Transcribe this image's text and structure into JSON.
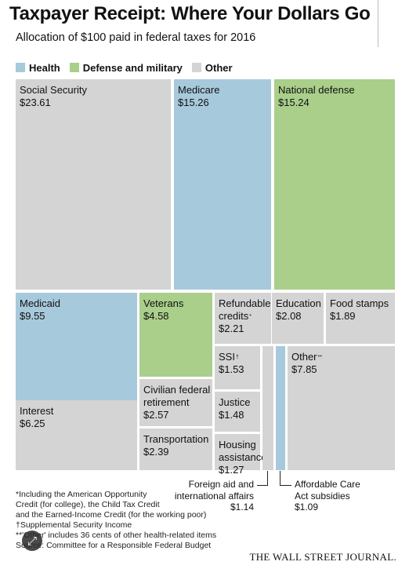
{
  "title": "Taxpayer Receipt: Where Your Dollars Go",
  "subtitle": "Allocation of $100 paid in federal taxes for 2016",
  "colors": {
    "health": "#a7c9dc",
    "defense": "#a9cf8a",
    "other": "#d4d4d4"
  },
  "legend": [
    {
      "label": "Health",
      "color": "#a7c9dc"
    },
    {
      "label": "Defense and military",
      "color": "#a9cf8a"
    },
    {
      "label": "Other",
      "color": "#d4d4d4"
    }
  ],
  "chart_data": {
    "type": "treemap",
    "title": "Taxpayer Receipt: Where Your Dollars Go",
    "subtitle": "Allocation of $100 paid in federal taxes for 2016",
    "unit": "$",
    "items": [
      {
        "key": "social_security",
        "name": "Social Security",
        "value": 23.61,
        "value_label": "$23.61",
        "group": "Other"
      },
      {
        "key": "medicare",
        "name": "Medicare",
        "value": 15.26,
        "value_label": "$15.26",
        "group": "Health"
      },
      {
        "key": "national_defense",
        "name": "National defense",
        "value": 15.24,
        "value_label": "$15.24",
        "group": "Defense and military"
      },
      {
        "key": "medicaid",
        "name": "Medicaid",
        "value": 9.55,
        "value_label": "$9.55",
        "group": "Health"
      },
      {
        "key": "interest",
        "name": "Interest",
        "value": 6.25,
        "value_label": "$6.25",
        "group": "Other"
      },
      {
        "key": "veterans",
        "name": "Veterans",
        "value": 4.58,
        "value_label": "$4.58",
        "group": "Defense and military"
      },
      {
        "key": "civilian_retirement",
        "name": "Civilian federal retirement",
        "value": 2.57,
        "value_label": "$2.57",
        "group": "Other"
      },
      {
        "key": "transportation",
        "name": "Transportation",
        "value": 2.39,
        "value_label": "$2.39",
        "group": "Other"
      },
      {
        "key": "refundable_credits",
        "name": "Refundable credits",
        "marker": "*",
        "value": 2.21,
        "value_label": "$2.21",
        "group": "Other"
      },
      {
        "key": "ssi",
        "name": "SSI",
        "marker": "†",
        "value": 1.53,
        "value_label": "$1.53",
        "group": "Other"
      },
      {
        "key": "justice",
        "name": "Justice",
        "value": 1.48,
        "value_label": "$1.48",
        "group": "Other"
      },
      {
        "key": "housing",
        "name": "Housing assistance",
        "value": 1.27,
        "value_label": "$1.27",
        "group": "Other"
      },
      {
        "key": "foreign_aid",
        "name": "Foreign aid and international affairs",
        "value": 1.14,
        "value_label": "$1.14",
        "group": "Other"
      },
      {
        "key": "aca",
        "name": "Affordable Care Act subsidies",
        "value": 1.09,
        "value_label": "$1.09",
        "group": "Health"
      },
      {
        "key": "education",
        "name": "Education",
        "value": 2.08,
        "value_label": "$2.08",
        "group": "Other"
      },
      {
        "key": "food_stamps",
        "name": "Food stamps",
        "value": 1.89,
        "value_label": "$1.89",
        "group": "Other"
      },
      {
        "key": "other",
        "name": "Other",
        "marker": "**",
        "value": 7.85,
        "value_label": "$7.85",
        "group": "Other"
      }
    ]
  },
  "callouts": {
    "foreign_aid": {
      "line1": "Foreign aid and",
      "line2": "international affairs",
      "value": "$1.14"
    },
    "aca": {
      "line1": "Affordable Care",
      "line2": "Act subsidies",
      "value": "$1.09"
    }
  },
  "notes": [
    "*Including the American Opportunity",
    "Credit (for college), the Child Tax Credit",
    "and the Earned-Income Credit (for the working poor)",
    "†Supplemental Security Income",
    "**'Other' includes 36 cents of other health-related items",
    "Source: Committee for a Responsible Federal Budget"
  ],
  "publisher": "THE WALL STREET JOURNAL.",
  "icons": {
    "expand": "expand-arrows-icon"
  }
}
